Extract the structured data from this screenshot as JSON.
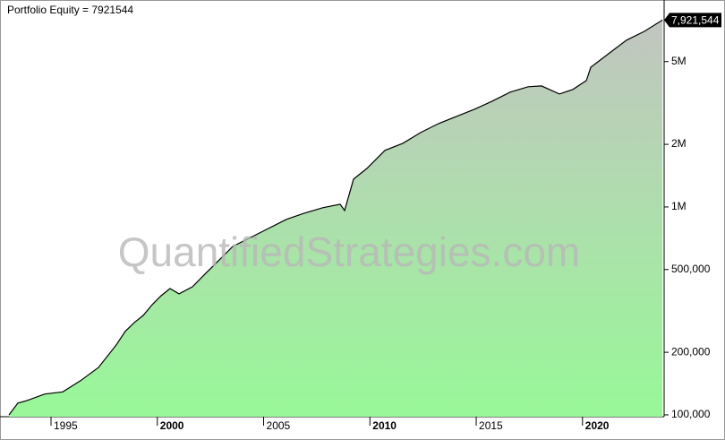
{
  "chart_data": {
    "type": "area",
    "title": "Portfolio Equity = 7921544",
    "watermark": "QuantifiedStrategies.com",
    "last_label": "7,921,544",
    "log_y": true,
    "color": "#000000",
    "fill_top": "#c2c5c0",
    "fill_bottom": "#98f898",
    "x": [
      1993.02,
      1993.44,
      1993.86,
      1994.71,
      1995.55,
      1996.39,
      1997.23,
      1998.07,
      1998.49,
      1998.92,
      1999.34,
      1999.76,
      2000.18,
      2000.6,
      2001.02,
      2001.65,
      2002.28,
      2002.92,
      2003.55,
      2004.39,
      2005.23,
      2006.07,
      2006.91,
      2007.76,
      2008.6,
      2008.81,
      2009.23,
      2009.86,
      2010.71,
      2011.55,
      2012.39,
      2013.23,
      2014.07,
      2014.92,
      2015.76,
      2016.6,
      2017.44,
      2018.07,
      2018.92,
      2019.55,
      2020.18,
      2020.39,
      2021.23,
      2022.07,
      2022.92,
      2023.76
    ],
    "values": [
      100000,
      114000,
      117000,
      126000,
      129000,
      146000,
      169000,
      217000,
      252000,
      278000,
      301000,
      339000,
      374000,
      405000,
      382000,
      413000,
      480000,
      557000,
      646000,
      713000,
      788000,
      871000,
      933000,
      990000,
      1030000,
      961000,
      1360000,
      1532000,
      1870000,
      2023000,
      2279000,
      2518000,
      2725000,
      2951000,
      3228000,
      3565000,
      3785000,
      3820000,
      3493000,
      3672000,
      4052000,
      4700000,
      5458000,
      6339000,
      6998000,
      7921544
    ],
    "xlim": [
      1992.81,
      2023.84
    ],
    "xticks": [
      1995,
      2000,
      2005,
      2010,
      2015,
      2020
    ],
    "ylim": [
      98000,
      9600000
    ],
    "yticks": [
      {
        "value": 100000,
        "label": "100,000"
      },
      {
        "value": 200000,
        "label": "200,000"
      },
      {
        "value": 500000,
        "label": "500,000"
      },
      {
        "value": 1000000,
        "label": "1M"
      },
      {
        "value": 2000000,
        "label": "2M"
      },
      {
        "value": 5000000,
        "label": "5M"
      }
    ]
  }
}
